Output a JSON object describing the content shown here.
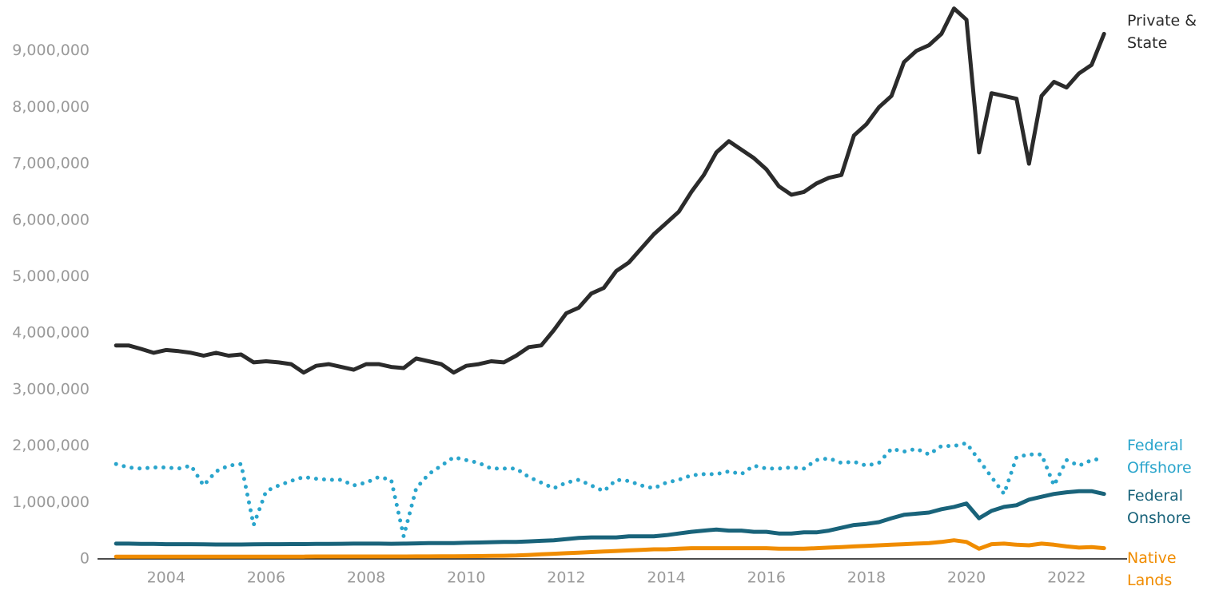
{
  "chart_data": {
    "type": "line",
    "x": [
      2003,
      2003.25,
      2003.5,
      2003.75,
      2004,
      2004.25,
      2004.5,
      2004.75,
      2005,
      2005.25,
      2005.5,
      2005.75,
      2006,
      2006.25,
      2006.5,
      2006.75,
      2007,
      2007.25,
      2007.5,
      2007.75,
      2008,
      2008.25,
      2008.5,
      2008.75,
      2009,
      2009.25,
      2009.5,
      2009.75,
      2010,
      2010.25,
      2010.5,
      2010.75,
      2011,
      2011.25,
      2011.5,
      2011.75,
      2012,
      2012.25,
      2012.5,
      2012.75,
      2013,
      2013.25,
      2013.5,
      2013.75,
      2014,
      2014.25,
      2014.5,
      2014.75,
      2015,
      2015.25,
      2015.5,
      2015.75,
      2016,
      2016.25,
      2016.5,
      2016.75,
      2017,
      2017.25,
      2017.5,
      2017.75,
      2018,
      2018.25,
      2018.5,
      2018.75,
      2019,
      2019.25,
      2019.5,
      2019.75,
      2020,
      2020.25,
      2020.5,
      2020.75,
      2021,
      2021.25,
      2021.5,
      2021.75,
      2022,
      2022.25,
      2022.5,
      2022.75
    ],
    "series": [
      {
        "name": "Private & State",
        "color": "#2b2b2b",
        "style": "solid",
        "values": [
          3780000,
          3780000,
          3720000,
          3650000,
          3700000,
          3680000,
          3650000,
          3600000,
          3650000,
          3600000,
          3620000,
          3480000,
          3500000,
          3480000,
          3450000,
          3300000,
          3420000,
          3450000,
          3400000,
          3350000,
          3450000,
          3450000,
          3400000,
          3380000,
          3550000,
          3500000,
          3450000,
          3300000,
          3420000,
          3450000,
          3500000,
          3480000,
          3600000,
          3750000,
          3780000,
          4050000,
          4350000,
          4450000,
          4700000,
          4800000,
          5100000,
          5250000,
          5500000,
          5750000,
          5950000,
          6150000,
          6500000,
          6800000,
          7200000,
          7400000,
          7250000,
          7100000,
          6900000,
          6600000,
          6450000,
          6500000,
          6650000,
          6750000,
          6800000,
          7500000,
          7700000,
          8000000,
          8200000,
          8800000,
          9000000,
          9100000,
          9300000,
          9750000,
          9550000,
          7200000,
          8250000,
          8200000,
          8150000,
          7000000,
          8200000,
          8450000,
          8350000,
          8600000,
          8750000,
          9300000
        ]
      },
      {
        "name": "Federal Offshore",
        "color": "#2aa5cc",
        "style": "dotted",
        "values": [
          1680000,
          1620000,
          1600000,
          1620000,
          1620000,
          1600000,
          1650000,
          1300000,
          1550000,
          1650000,
          1680000,
          600000,
          1200000,
          1300000,
          1380000,
          1450000,
          1420000,
          1400000,
          1400000,
          1300000,
          1350000,
          1450000,
          1400000,
          400000,
          1250000,
          1500000,
          1650000,
          1800000,
          1750000,
          1700000,
          1600000,
          1600000,
          1600000,
          1450000,
          1350000,
          1250000,
          1350000,
          1400000,
          1300000,
          1200000,
          1400000,
          1380000,
          1300000,
          1250000,
          1350000,
          1400000,
          1480000,
          1500000,
          1500000,
          1550000,
          1500000,
          1650000,
          1600000,
          1600000,
          1620000,
          1600000,
          1750000,
          1780000,
          1700000,
          1720000,
          1650000,
          1700000,
          1950000,
          1900000,
          1950000,
          1850000,
          2000000,
          2000000,
          2050000,
          1750000,
          1450000,
          1150000,
          1800000,
          1850000,
          1850000,
          1300000,
          1750000,
          1650000,
          1750000,
          1780000
        ]
      },
      {
        "name": "Federal Onshore",
        "color": "#19637a",
        "style": "solid",
        "values": [
          270000,
          270000,
          265000,
          265000,
          260000,
          260000,
          260000,
          258000,
          255000,
          255000,
          255000,
          258000,
          260000,
          260000,
          262000,
          262000,
          265000,
          265000,
          268000,
          270000,
          270000,
          270000,
          268000,
          270000,
          275000,
          278000,
          280000,
          280000,
          285000,
          290000,
          295000,
          300000,
          300000,
          310000,
          320000,
          330000,
          350000,
          370000,
          380000,
          380000,
          380000,
          400000,
          400000,
          400000,
          420000,
          450000,
          480000,
          500000,
          520000,
          500000,
          500000,
          480000,
          480000,
          450000,
          450000,
          470000,
          470000,
          500000,
          550000,
          600000,
          620000,
          650000,
          720000,
          780000,
          800000,
          820000,
          880000,
          920000,
          980000,
          720000,
          850000,
          920000,
          950000,
          1050000,
          1100000,
          1150000,
          1180000,
          1200000,
          1200000,
          1150000
        ]
      },
      {
        "name": "Native Lands",
        "color": "#f08c00",
        "style": "solid",
        "values": [
          40000,
          40000,
          40000,
          40000,
          40000,
          40000,
          40000,
          40000,
          40000,
          40000,
          40000,
          40000,
          40000,
          40000,
          40000,
          40000,
          42000,
          42000,
          42000,
          42000,
          43000,
          43000,
          43000,
          43000,
          44000,
          44000,
          45000,
          45000,
          48000,
          50000,
          52000,
          55000,
          60000,
          70000,
          80000,
          90000,
          100000,
          110000,
          120000,
          130000,
          140000,
          150000,
          160000,
          170000,
          170000,
          180000,
          190000,
          190000,
          190000,
          190000,
          190000,
          190000,
          190000,
          180000,
          180000,
          180000,
          190000,
          200000,
          210000,
          220000,
          230000,
          240000,
          250000,
          260000,
          270000,
          280000,
          300000,
          330000,
          300000,
          180000,
          260000,
          270000,
          250000,
          240000,
          270000,
          250000,
          220000,
          200000,
          210000,
          190000
        ]
      }
    ],
    "xlim": [
      2002.63,
      2023.05
    ],
    "xticks": [
      2004,
      2006,
      2008,
      2010,
      2012,
      2014,
      2016,
      2018,
      2020,
      2022
    ],
    "ylim": [
      0,
      9900000
    ],
    "yticks": [
      0,
      {
        "value": 1000000,
        "label": "1,000,000"
      },
      {
        "value": 2000000,
        "label": "2,000,000"
      },
      {
        "value": 3000000,
        "label": "3,000,000"
      },
      {
        "value": 4000000,
        "label": "4,000,000"
      },
      {
        "value": 5000000,
        "label": "5,000,000"
      },
      {
        "value": 6000000,
        "label": "6,000,000"
      },
      {
        "value": 7000000,
        "label": "7,000,000"
      },
      {
        "value": 8000000,
        "label": "8,000,000"
      },
      {
        "value": 9000000,
        "label": "9,000,000"
      }
    ],
    "grid": false
  }
}
